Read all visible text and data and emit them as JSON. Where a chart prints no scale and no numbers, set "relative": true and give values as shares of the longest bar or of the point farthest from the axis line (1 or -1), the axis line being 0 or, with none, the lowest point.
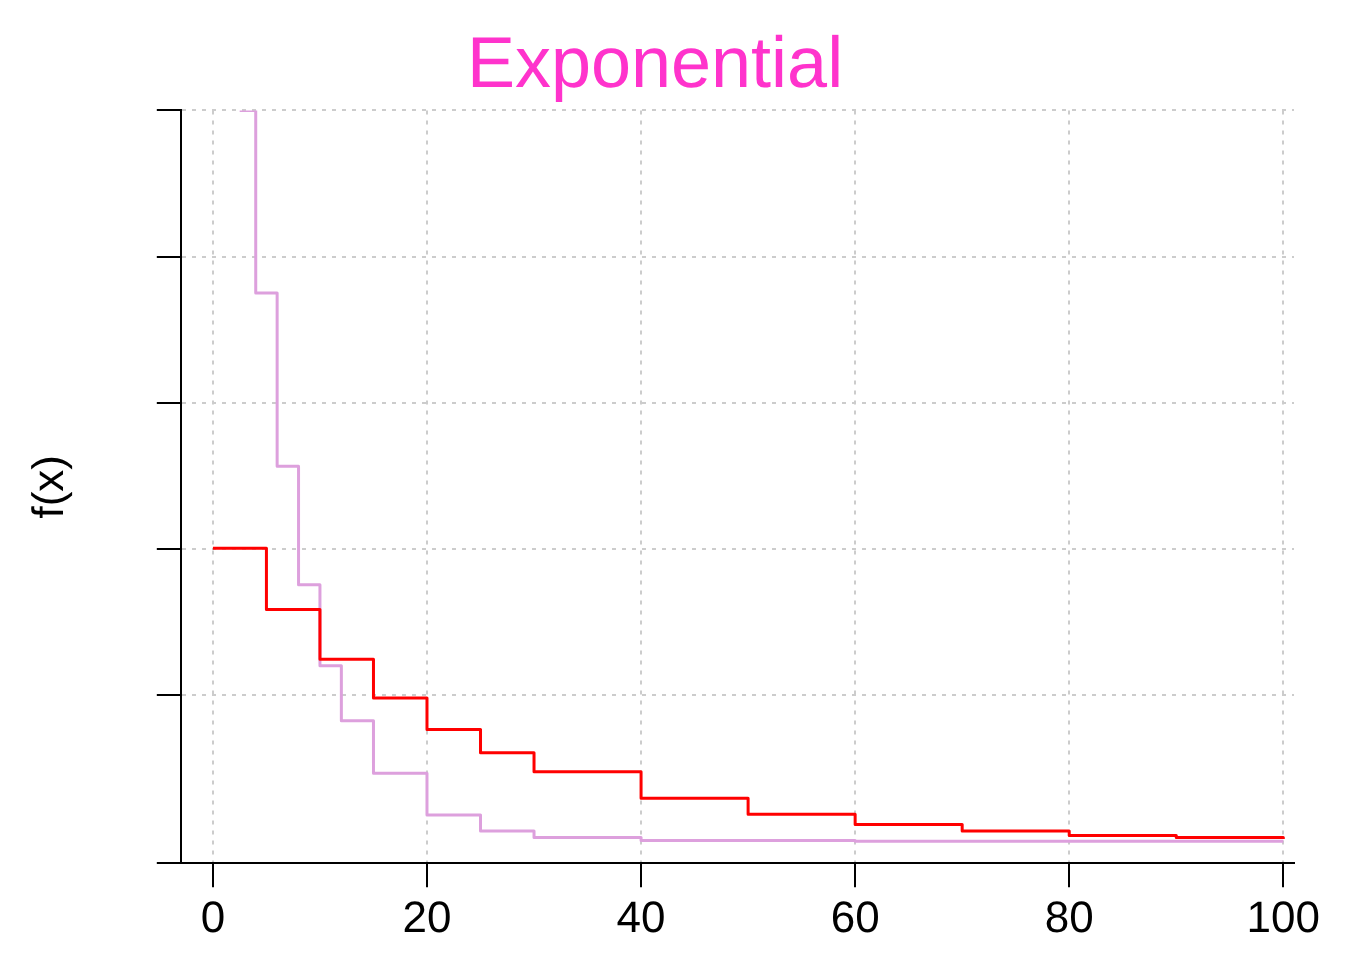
{
  "chart_data": {
    "type": "step",
    "title": "Exponential",
    "ylabel": "f(x)",
    "relative": true,
    "xlim": [
      -3,
      101
    ],
    "xticks": [
      0,
      20,
      40,
      60,
      80,
      100
    ],
    "grid": true,
    "legend": false,
    "series": [
      {
        "color": "#ff0000",
        "x": [
          0,
          5,
          10,
          15,
          20,
          25,
          30,
          40,
          50,
          60,
          70,
          80,
          90,
          100
        ],
        "values": [
          0.401,
          0.317,
          0.249,
          0.196,
          0.153,
          0.121,
          0.095,
          0.059,
          0.037,
          0.023,
          0.014,
          0.008,
          0.005,
          0.003
        ]
      },
      {
        "color": "#dda0dd",
        "x": [
          2.5,
          4,
          6,
          8,
          10,
          12,
          15,
          20,
          25,
          30,
          40,
          60,
          100
        ],
        "values": [
          1.0,
          0.75,
          0.513,
          0.351,
          0.24,
          0.165,
          0.093,
          0.036,
          0.014,
          0.005,
          0.001,
          0,
          0
        ]
      }
    ]
  }
}
